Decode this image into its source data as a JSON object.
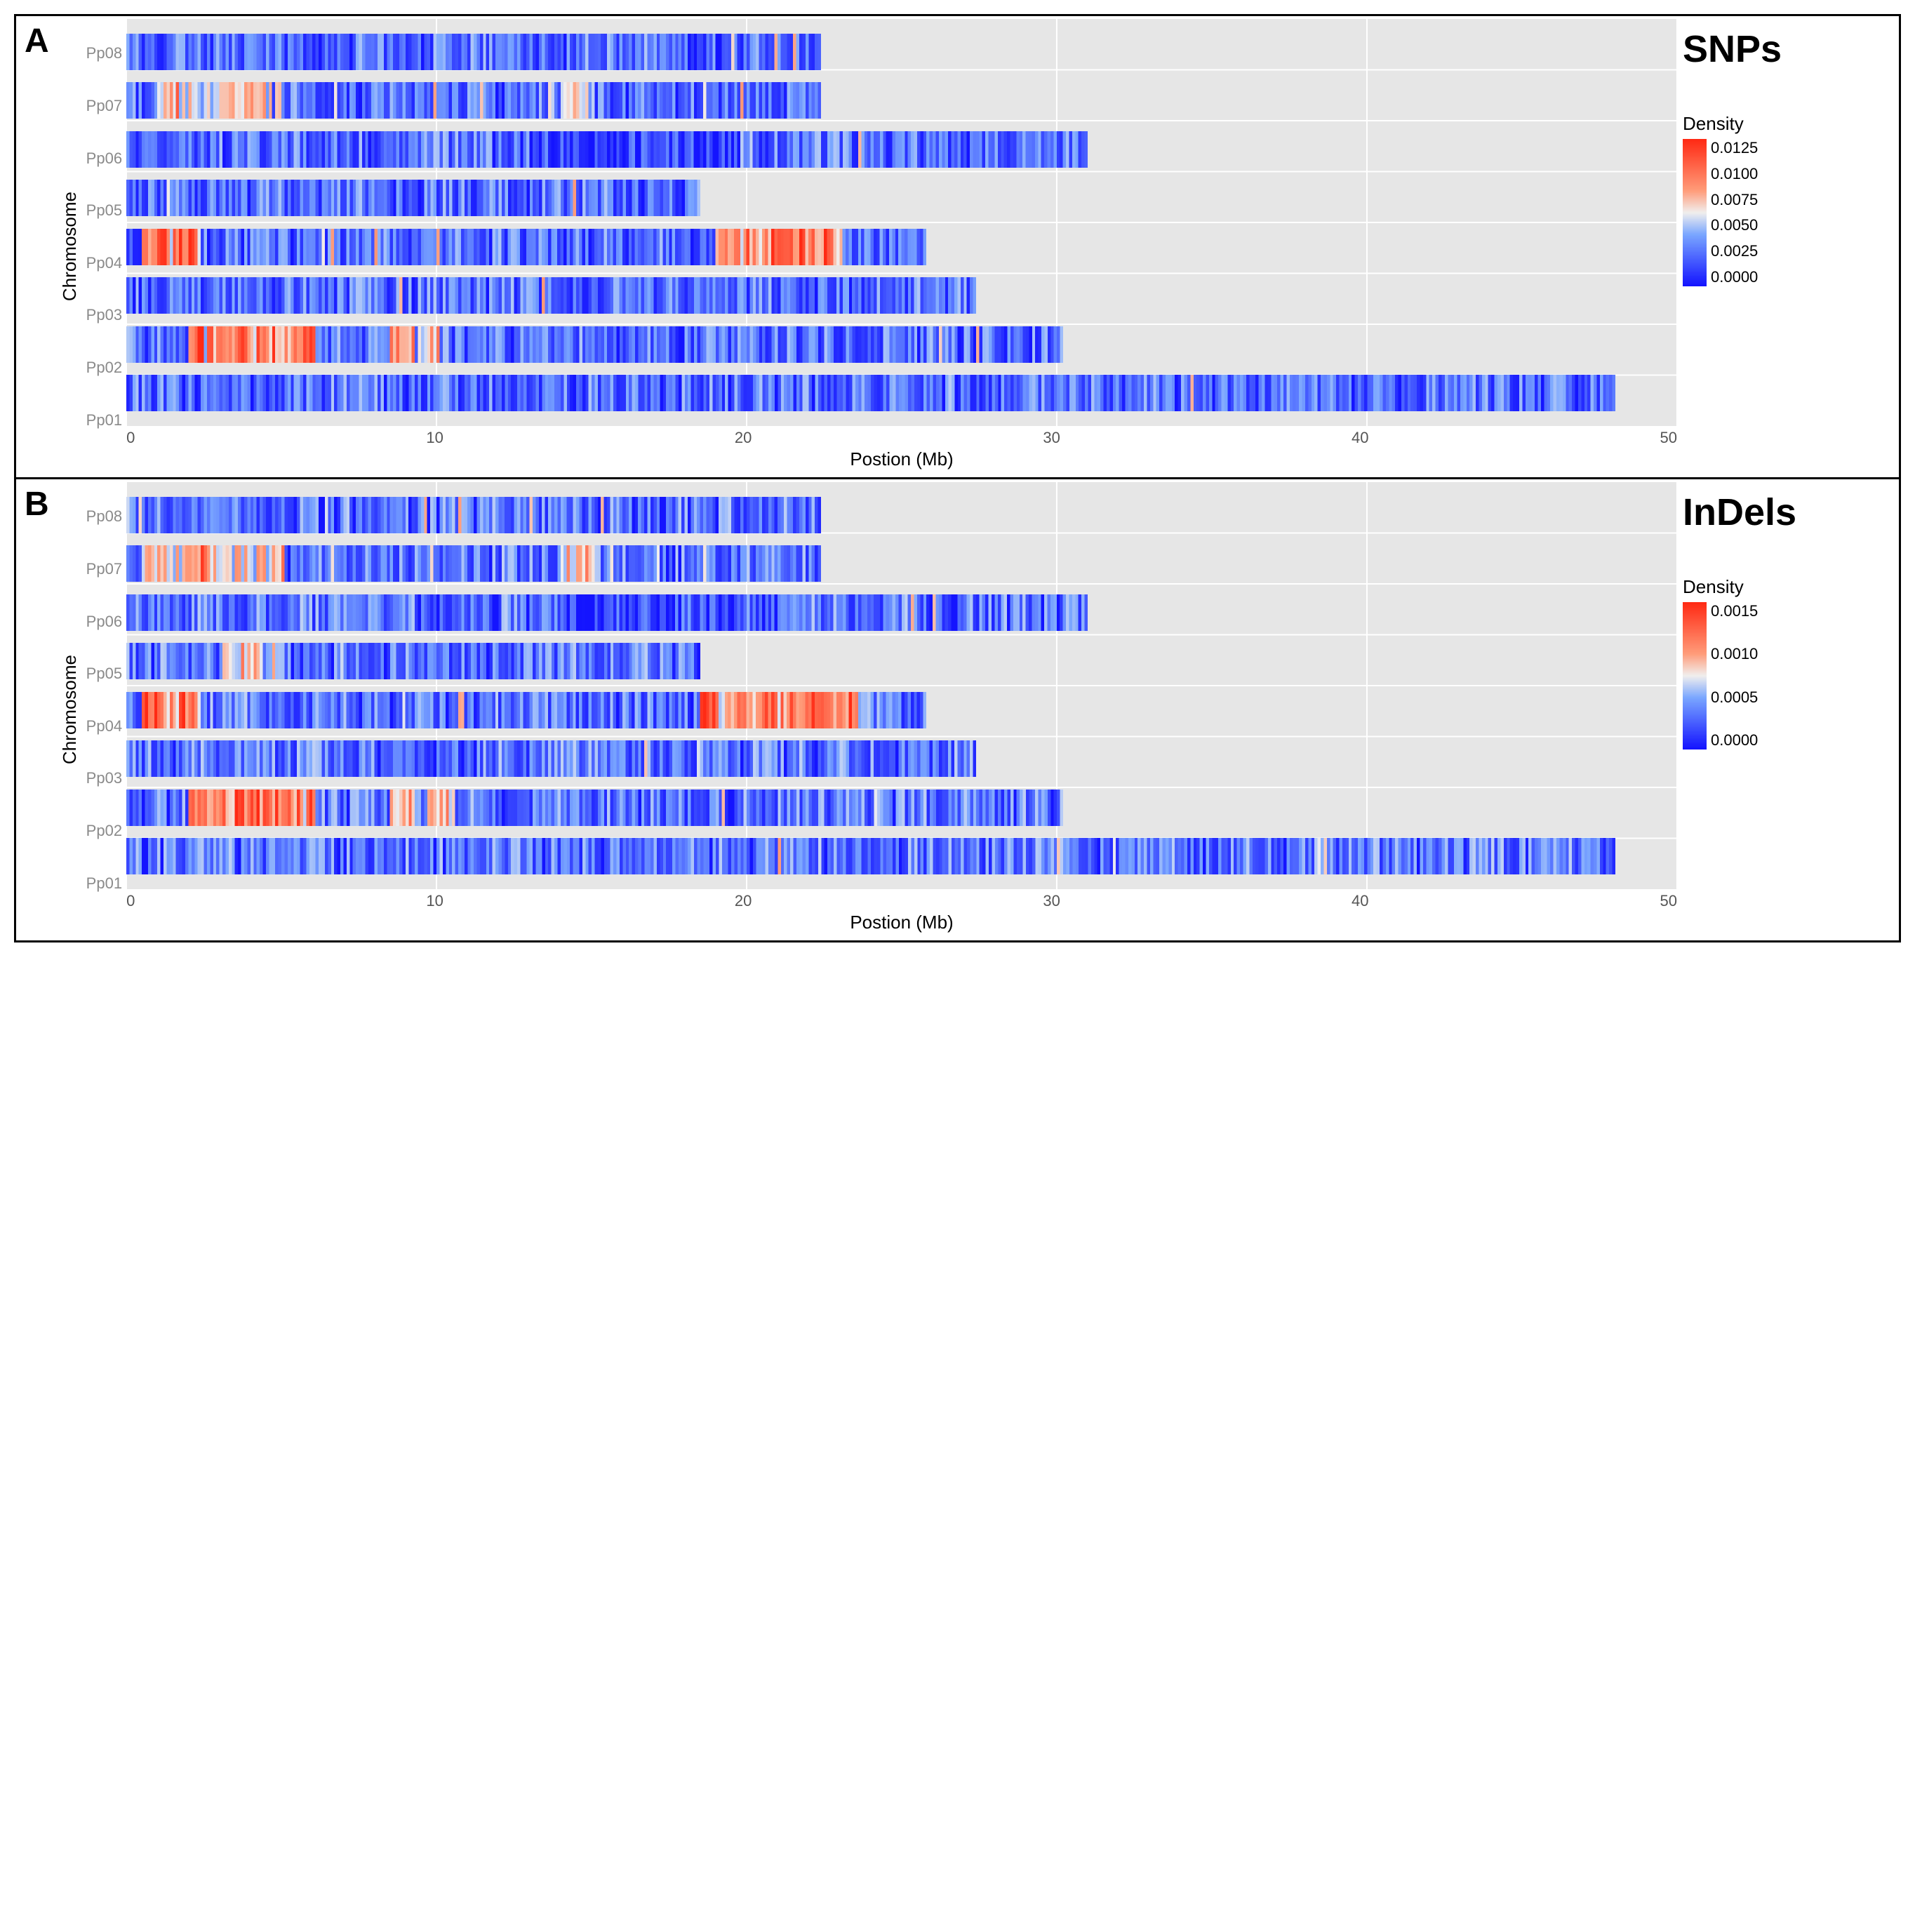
{
  "figure": {
    "xmax_mb": 50,
    "xticks": [
      0,
      10,
      20,
      30,
      40,
      50
    ],
    "xlabel": "Postion (Mb)",
    "ylabel": "Chromosome",
    "plot_bg": "#e6e6e6",
    "grid_color": "#ffffff",
    "chromosomes": [
      "Pp08",
      "Pp07",
      "Pp06",
      "Pp05",
      "Pp04",
      "Pp03",
      "Pp02",
      "Pp01"
    ],
    "chrom_lengths_mb": {
      "Pp01": 48.0,
      "Pp02": 30.2,
      "Pp03": 27.4,
      "Pp04": 25.8,
      "Pp05": 18.5,
      "Pp06": 31.0,
      "Pp07": 22.4,
      "Pp08": 22.4
    },
    "stripe_resolution_per_mb": 10,
    "colorscale": {
      "stops": [
        {
          "t": 0.0,
          "hex": "#1414ff"
        },
        {
          "t": 0.35,
          "hex": "#7aa6ff"
        },
        {
          "t": 0.5,
          "hex": "#f1efee"
        },
        {
          "t": 0.65,
          "hex": "#ff9c7a"
        },
        {
          "t": 1.0,
          "hex": "#ff2a14"
        }
      ]
    }
  },
  "panels": [
    {
      "letter": "A",
      "side_title": "SNPs",
      "legend_title": "Density",
      "legend_ticks": [
        "0.0125",
        "0.0100",
        "0.0075",
        "0.0050",
        "0.0025",
        "0.0000"
      ],
      "density_model": {
        "base_mean": 0.22,
        "base_spread": 0.2,
        "hotspots": {
          "Pp04": [
            {
              "from": 0.5,
              "to": 2.3,
              "boost": 0.75
            },
            {
              "from": 19,
              "to": 23,
              "boost": 0.65
            }
          ],
          "Pp02": [
            {
              "from": 2,
              "to": 6,
              "boost": 0.62
            },
            {
              "from": 8.5,
              "to": 10,
              "boost": 0.45
            }
          ],
          "Pp07": [
            {
              "from": 1,
              "to": 5,
              "boost": 0.35
            },
            {
              "from": 14,
              "to": 15,
              "boost": 0.4
            }
          ],
          "Pp06": [
            {
              "from": 13,
              "to": 20,
              "boost": -0.15
            }
          ]
        }
      }
    },
    {
      "letter": "B",
      "side_title": "InDels",
      "legend_title": "Density",
      "legend_ticks": [
        "0.0015",
        "0.0010",
        "0.0005",
        "0.0000"
      ],
      "density_model": {
        "base_mean": 0.24,
        "base_spread": 0.2,
        "hotspots": {
          "Pp04": [
            {
              "from": 0.5,
              "to": 2.3,
              "boost": 0.72
            },
            {
              "from": 18.5,
              "to": 23.5,
              "boost": 0.62
            }
          ],
          "Pp02": [
            {
              "from": 2,
              "to": 6,
              "boost": 0.66
            },
            {
              "from": 8.5,
              "to": 10.5,
              "boost": 0.4
            }
          ],
          "Pp07": [
            {
              "from": 0.5,
              "to": 5,
              "boost": 0.4
            },
            {
              "from": 14,
              "to": 15,
              "boost": 0.38
            }
          ],
          "Pp05": [
            {
              "from": 3,
              "to": 5,
              "boost": 0.35
            }
          ],
          "Pp06": [
            {
              "from": 14,
              "to": 21,
              "boost": -0.15
            }
          ]
        }
      }
    }
  ]
}
